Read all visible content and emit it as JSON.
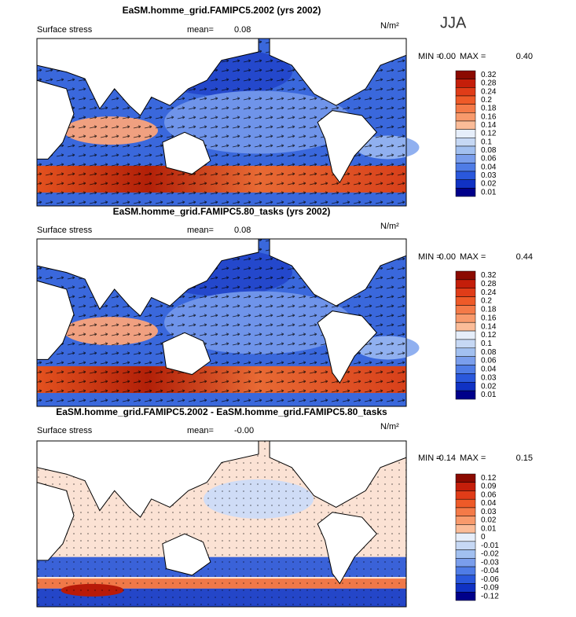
{
  "season": "JJA",
  "panels": [
    {
      "title": "EaSM.homme_grid.FAMIPC5.2002 (yrs 2002)",
      "field": "Surface stress",
      "mean_label": "mean=",
      "mean": "0.08",
      "units": "N/m²",
      "min_label": "MIN =",
      "min": "0.00",
      "max_label": "MAX =",
      "max": "0.40",
      "levels": [
        "0.32",
        "0.28",
        "0.24",
        "0.2",
        "0.18",
        "0.16",
        "0.14",
        "0.12",
        "0.1",
        "0.08",
        "0.06",
        "0.04",
        "0.03",
        "0.02",
        "0.01"
      ]
    },
    {
      "title": "EaSM.homme_grid.FAMIPC5.80_tasks (yrs 2002)",
      "field": "Surface stress",
      "mean_label": "mean=",
      "mean": "0.08",
      "units": "N/m²",
      "min_label": "MIN =",
      "min": "0.00",
      "max_label": "MAX =",
      "max": "0.44",
      "levels": [
        "0.32",
        "0.28",
        "0.24",
        "0.2",
        "0.18",
        "0.16",
        "0.14",
        "0.12",
        "0.1",
        "0.08",
        "0.06",
        "0.04",
        "0.03",
        "0.02",
        "0.01"
      ]
    },
    {
      "title": "EaSM.homme_grid.FAMIPC5.2002 - EaSM.homme_grid.FAMIPC5.80_tasks",
      "field": "Surface stress",
      "mean_label": "mean=",
      "mean": "-0.00",
      "units": "N/m²",
      "min_label": "MIN =",
      "min": "-0.14",
      "max_label": "MAX =",
      "max": "0.15",
      "levels": [
        "0.12",
        "0.09",
        "0.06",
        "0.04",
        "0.03",
        "0.02",
        "0.01",
        "0",
        "-0.01",
        "-0.02",
        "-0.03",
        "-0.04",
        "-0.06",
        "-0.09",
        "-0.12"
      ]
    }
  ]
}
